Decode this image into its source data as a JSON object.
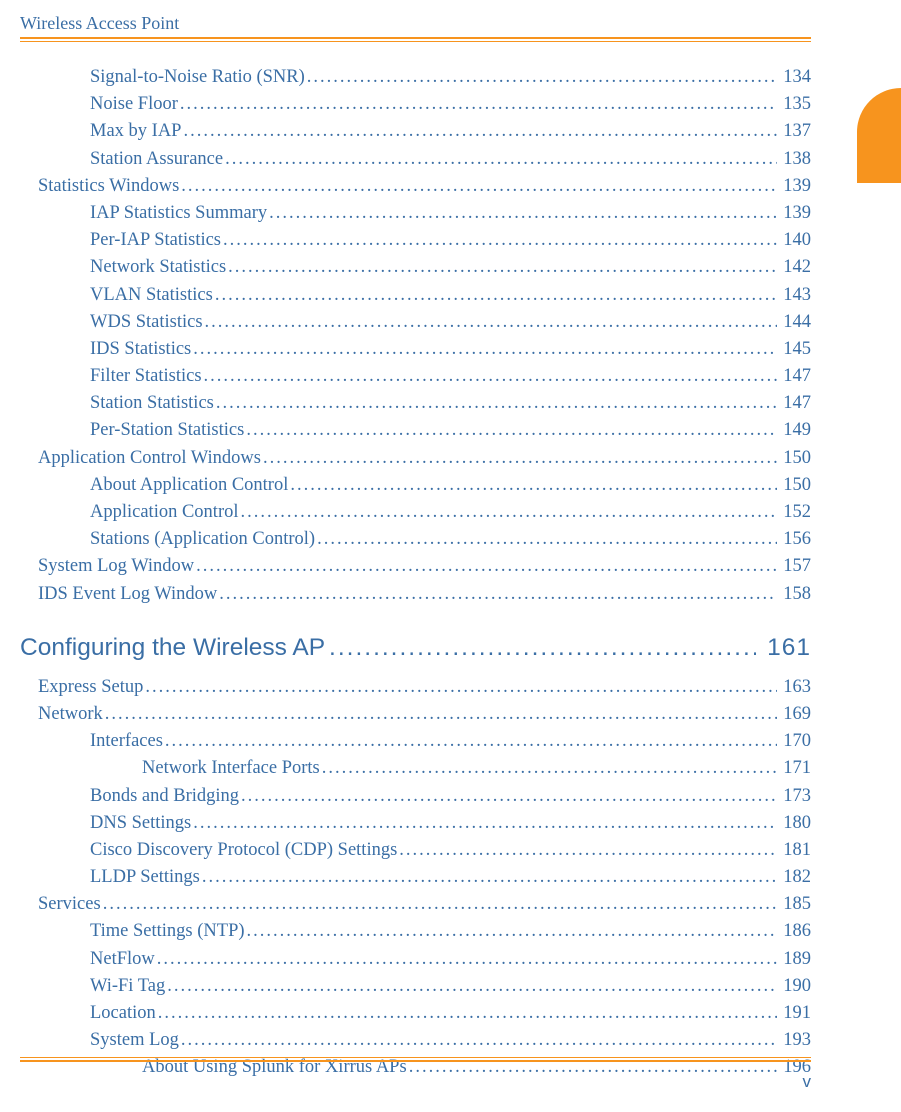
{
  "header": "Wireless Access Point",
  "page_number": "v",
  "colors": {
    "link": "#3a6ea5",
    "accent": "#f7941e",
    "bg": "#ffffff"
  },
  "toc_part1": [
    {
      "label": "Signal-to-Noise Ratio (SNR)",
      "page": "134",
      "indent": 2
    },
    {
      "label": "Noise Floor",
      "page": "135",
      "indent": 2
    },
    {
      "label": "Max by IAP",
      "page": "137",
      "indent": 2
    },
    {
      "label": "Station Assurance",
      "page": "138",
      "indent": 2
    },
    {
      "label": "Statistics Windows",
      "page": "139",
      "indent": 1
    },
    {
      "label": "IAP Statistics Summary",
      "page": "139",
      "indent": 2
    },
    {
      "label": "Per-IAP Statistics",
      "page": "140",
      "indent": 2
    },
    {
      "label": "Network Statistics",
      "page": "142",
      "indent": 2
    },
    {
      "label": "VLAN Statistics",
      "page": "143",
      "indent": 2
    },
    {
      "label": "WDS Statistics",
      "page": "144",
      "indent": 2
    },
    {
      "label": "IDS Statistics",
      "page": "145",
      "indent": 2
    },
    {
      "label": "Filter Statistics",
      "page": "147",
      "indent": 2
    },
    {
      "label": "Station Statistics",
      "page": "147",
      "indent": 2
    },
    {
      "label": "Per-Station Statistics",
      "page": "149",
      "indent": 2
    },
    {
      "label": "Application Control Windows",
      "page": "150",
      "indent": 1
    },
    {
      "label": "About Application Control",
      "page": "150",
      "indent": 2
    },
    {
      "label": "Application Control",
      "page": "152",
      "indent": 2
    },
    {
      "label": "Stations (Application Control)",
      "page": "156",
      "indent": 2
    },
    {
      "label": "System Log Window",
      "page": "157",
      "indent": 1
    },
    {
      "label": "IDS Event Log Window",
      "page": "158",
      "indent": 1
    }
  ],
  "section": {
    "label": "Configuring the Wireless AP",
    "page": "161"
  },
  "toc_part2": [
    {
      "label": "Express Setup",
      "page": "163",
      "indent": 1
    },
    {
      "label": "Network",
      "page": "169",
      "indent": 1
    },
    {
      "label": "Interfaces ",
      "page": "170",
      "indent": 2
    },
    {
      "label": "Network Interface Ports",
      "page": "171",
      "indent": 3
    },
    {
      "label": "Bonds and Bridging",
      "page": "173",
      "indent": 2
    },
    {
      "label": "DNS Settings",
      "page": "180",
      "indent": 2
    },
    {
      "label": "Cisco Discovery Protocol (CDP) Settings",
      "page": "181",
      "indent": 2
    },
    {
      "label": "LLDP Settings",
      "page": "182",
      "indent": 2
    },
    {
      "label": "Services",
      "page": "185",
      "indent": 1
    },
    {
      "label": "Time Settings (NTP)",
      "page": "186",
      "indent": 2
    },
    {
      "label": "NetFlow",
      "page": "189",
      "indent": 2
    },
    {
      "label": "Wi-Fi Tag",
      "page": "190",
      "indent": 2
    },
    {
      "label": "Location",
      "page": "191",
      "indent": 2
    },
    {
      "label": "System Log",
      "page": "193",
      "indent": 2
    },
    {
      "label": "About Using Splunk for Xirrus APs",
      "page": "196",
      "indent": 3
    }
  ]
}
